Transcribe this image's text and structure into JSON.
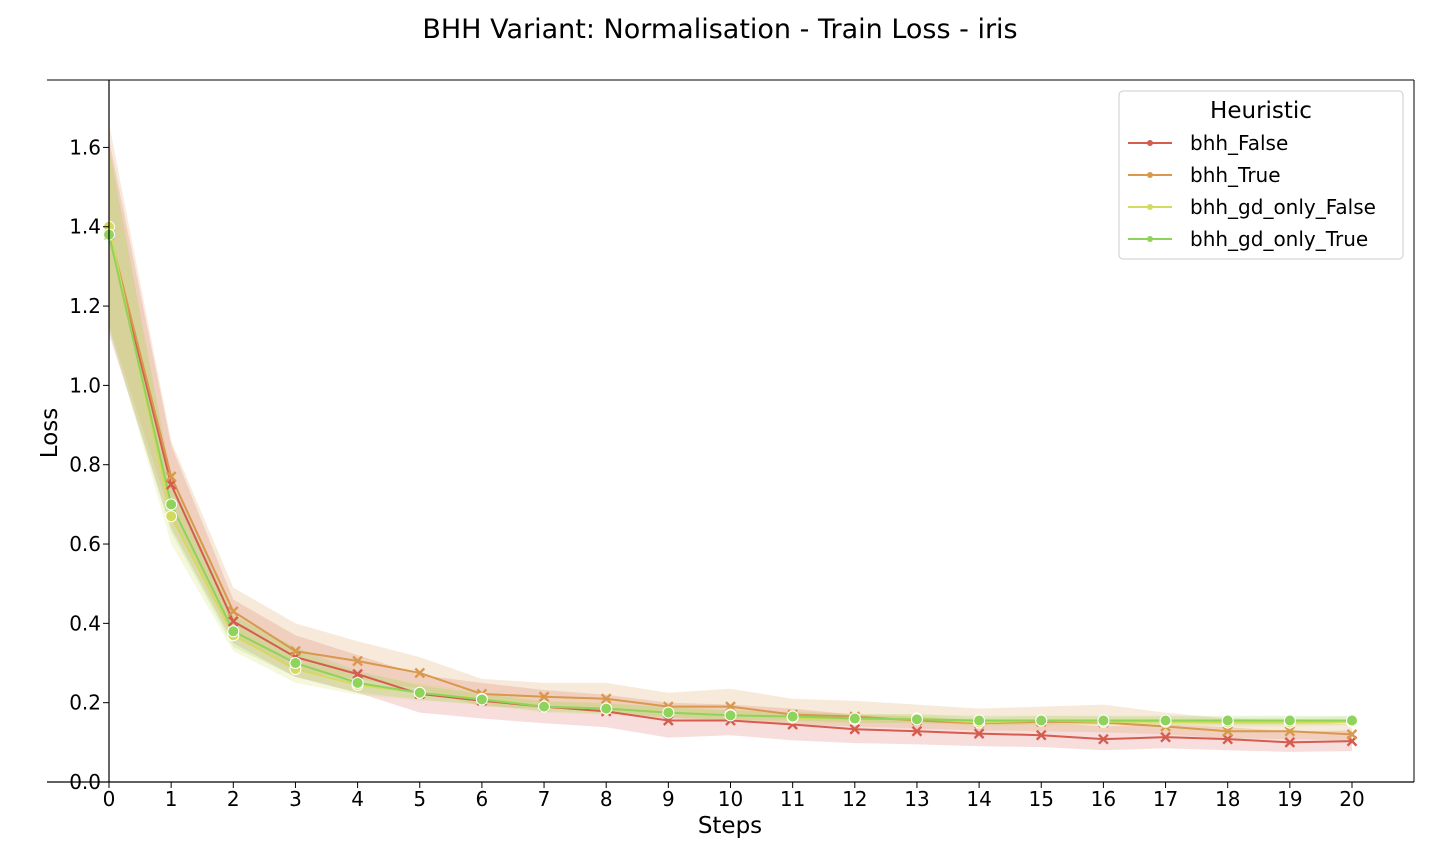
{
  "chart_data": {
    "type": "line",
    "title": "BHH Variant: Normalisation - Train Loss - iris",
    "xlabel": "Steps",
    "ylabel": "Loss",
    "xlim": [
      0,
      20
    ],
    "ylim": [
      0.0,
      1.77
    ],
    "x": [
      0,
      1,
      2,
      3,
      4,
      5,
      6,
      7,
      8,
      9,
      10,
      11,
      12,
      13,
      14,
      15,
      16,
      17,
      18,
      19,
      20
    ],
    "x_ticks": [
      0,
      1,
      2,
      3,
      4,
      5,
      6,
      7,
      8,
      9,
      10,
      11,
      12,
      13,
      14,
      15,
      16,
      17,
      18,
      19,
      20
    ],
    "y_ticks": [
      "0.0",
      "0.2",
      "0.4",
      "0.6",
      "0.8",
      "1.0",
      "1.2",
      "1.4",
      "1.6"
    ],
    "grid": false,
    "legend": {
      "title": "Heuristic",
      "placement": "top-right"
    },
    "series": [
      {
        "name": "bhh_False",
        "color": "#d65c4f",
        "marker": "x",
        "values": [
          1.38,
          0.75,
          0.405,
          0.315,
          0.272,
          0.222,
          0.205,
          0.19,
          0.178,
          0.155,
          0.155,
          0.145,
          0.133,
          0.128,
          0.122,
          0.118,
          0.108,
          0.113,
          0.108,
          0.1,
          0.103
        ],
        "lower": [
          1.13,
          0.64,
          0.35,
          0.265,
          0.225,
          0.175,
          0.16,
          0.148,
          0.138,
          0.112,
          0.118,
          0.105,
          0.098,
          0.095,
          0.09,
          0.088,
          0.08,
          0.085,
          0.08,
          0.076,
          0.078
        ],
        "upper": [
          1.62,
          0.85,
          0.46,
          0.37,
          0.32,
          0.27,
          0.25,
          0.232,
          0.22,
          0.2,
          0.195,
          0.185,
          0.17,
          0.165,
          0.155,
          0.15,
          0.14,
          0.145,
          0.138,
          0.128,
          0.13
        ]
      },
      {
        "name": "bhh_True",
        "color": "#d9984c",
        "marker": "x",
        "values": [
          1.39,
          0.77,
          0.43,
          0.33,
          0.305,
          0.275,
          0.222,
          0.215,
          0.21,
          0.19,
          0.19,
          0.17,
          0.165,
          0.155,
          0.148,
          0.152,
          0.15,
          0.14,
          0.128,
          0.128,
          0.12
        ],
        "lower": [
          1.15,
          0.67,
          0.37,
          0.28,
          0.26,
          0.235,
          0.19,
          0.185,
          0.18,
          0.16,
          0.155,
          0.145,
          0.14,
          0.135,
          0.13,
          0.128,
          0.125,
          0.12,
          0.11,
          0.108,
          0.105
        ],
        "upper": [
          1.66,
          0.86,
          0.49,
          0.4,
          0.355,
          0.315,
          0.26,
          0.25,
          0.25,
          0.225,
          0.235,
          0.21,
          0.205,
          0.195,
          0.185,
          0.19,
          0.195,
          0.175,
          0.16,
          0.155,
          0.145
        ]
      },
      {
        "name": "bhh_gd_only_False",
        "color": "#d4da5c",
        "marker": "o",
        "values": [
          1.4,
          0.67,
          0.37,
          0.285,
          0.245,
          0.225,
          0.21,
          0.19,
          0.185,
          0.175,
          0.17,
          0.162,
          0.158,
          0.16,
          0.15,
          0.155,
          0.152,
          0.152,
          0.15,
          0.15,
          0.152
        ],
        "lower": [
          1.15,
          0.6,
          0.33,
          0.25,
          0.22,
          0.205,
          0.195,
          0.175,
          0.17,
          0.162,
          0.158,
          0.15,
          0.148,
          0.15,
          0.14,
          0.145,
          0.142,
          0.142,
          0.14,
          0.14,
          0.142
        ],
        "upper": [
          1.6,
          0.75,
          0.42,
          0.33,
          0.275,
          0.248,
          0.225,
          0.205,
          0.2,
          0.19,
          0.183,
          0.175,
          0.17,
          0.172,
          0.162,
          0.167,
          0.165,
          0.165,
          0.162,
          0.162,
          0.165
        ]
      },
      {
        "name": "bhh_gd_only_True",
        "color": "#8ed35c",
        "marker": "o",
        "values": [
          1.38,
          0.7,
          0.38,
          0.3,
          0.25,
          0.225,
          0.208,
          0.19,
          0.185,
          0.175,
          0.168,
          0.165,
          0.16,
          0.158,
          0.155,
          0.155,
          0.155,
          0.155,
          0.155,
          0.155,
          0.155
        ],
        "lower": [
          1.14,
          0.63,
          0.34,
          0.265,
          0.225,
          0.208,
          0.195,
          0.178,
          0.172,
          0.163,
          0.157,
          0.155,
          0.15,
          0.148,
          0.145,
          0.145,
          0.145,
          0.145,
          0.145,
          0.145,
          0.145
        ],
        "upper": [
          1.6,
          0.77,
          0.42,
          0.34,
          0.28,
          0.243,
          0.222,
          0.203,
          0.198,
          0.188,
          0.18,
          0.177,
          0.172,
          0.17,
          0.167,
          0.167,
          0.167,
          0.167,
          0.167,
          0.167,
          0.167
        ]
      }
    ]
  }
}
